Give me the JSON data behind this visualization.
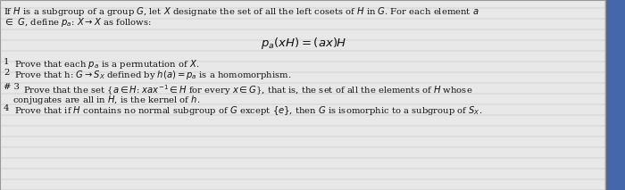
{
  "background_color": "#c8c8c8",
  "paper_color": "#e8e8e8",
  "grid_color": "#bbbbbb",
  "border_color": "#999999",
  "right_tab_color": "#4466aa",
  "figsize": [
    7.0,
    2.13
  ],
  "dpi": 100,
  "text_color": "#111111",
  "fs": 7.2
}
